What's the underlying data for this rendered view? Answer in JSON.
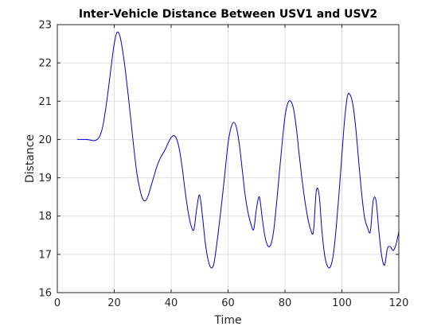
{
  "chart_data": {
    "type": "line",
    "title": "Inter-Vehicle Distance Between USV1 and USV2",
    "xlabel": "Time",
    "ylabel": "Distance",
    "xlim": [
      0,
      120
    ],
    "ylim": [
      16,
      23
    ],
    "xticks": [
      0,
      20,
      40,
      60,
      80,
      100,
      120
    ],
    "yticks": [
      16,
      17,
      18,
      19,
      20,
      21,
      22,
      23
    ],
    "grid": true,
    "line_color": "#0000cc",
    "series": [
      {
        "x": [
          7,
          10,
          12,
          13,
          14,
          15,
          16,
          17,
          18,
          19,
          20,
          21,
          22,
          23,
          24,
          25,
          26,
          27,
          28,
          29,
          30,
          31,
          32,
          33,
          34,
          35,
          36,
          37,
          38,
          39,
          40,
          41,
          42,
          43,
          44,
          45,
          46,
          47,
          48,
          49,
          50,
          51,
          52,
          53,
          54,
          55,
          56,
          57,
          58,
          59,
          60,
          61,
          62,
          63,
          64,
          65,
          66,
          67,
          68,
          69,
          70,
          71,
          72,
          73,
          74,
          75,
          76,
          77,
          78,
          79,
          80,
          81,
          82,
          83,
          84,
          85,
          86,
          87,
          88,
          89,
          90,
          91,
          92,
          93,
          94,
          95,
          96,
          97,
          98,
          99,
          100,
          101,
          102,
          103,
          104,
          105,
          106,
          107,
          108,
          109,
          110,
          111,
          112,
          113,
          114,
          115,
          116,
          117,
          118,
          119,
          120
        ],
        "y": [
          20.0,
          20.0,
          19.98,
          19.97,
          20.0,
          20.1,
          20.35,
          20.8,
          21.35,
          21.95,
          22.5,
          22.8,
          22.7,
          22.3,
          21.75,
          21.1,
          20.4,
          19.7,
          19.1,
          18.7,
          18.45,
          18.4,
          18.55,
          18.8,
          19.05,
          19.3,
          19.48,
          19.62,
          19.75,
          19.92,
          20.05,
          20.1,
          20.0,
          19.7,
          19.2,
          18.6,
          18.1,
          17.75,
          17.65,
          18.2,
          18.55,
          18.0,
          17.3,
          16.85,
          16.65,
          16.75,
          17.25,
          17.85,
          18.5,
          19.2,
          19.9,
          20.3,
          20.45,
          20.3,
          19.85,
          19.2,
          18.55,
          18.1,
          17.8,
          17.65,
          18.2,
          18.5,
          17.95,
          17.45,
          17.22,
          17.25,
          17.6,
          18.3,
          19.1,
          19.9,
          20.6,
          20.95,
          21.0,
          20.8,
          20.3,
          19.6,
          18.95,
          18.4,
          17.95,
          17.65,
          17.6,
          18.65,
          18.55,
          17.6,
          16.95,
          16.68,
          16.68,
          17.0,
          17.7,
          18.6,
          19.6,
          20.55,
          21.15,
          21.15,
          20.85,
          20.2,
          19.35,
          18.55,
          17.95,
          17.7,
          17.6,
          18.4,
          18.4,
          17.6,
          16.95,
          16.72,
          17.15,
          17.2,
          17.1,
          17.25,
          17.6
        ]
      }
    ]
  }
}
